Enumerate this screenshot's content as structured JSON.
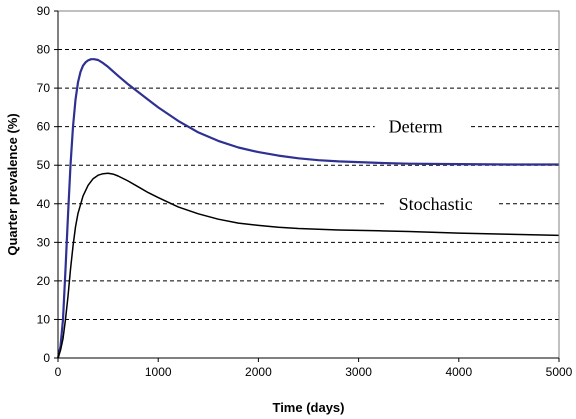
{
  "chart_data": {
    "type": "line",
    "title": "",
    "xlabel": "Time (days)",
    "ylabel": "Quarter prevalence (%)",
    "xlim": [
      0,
      5000
    ],
    "ylim": [
      0,
      90
    ],
    "xticks": [
      "0",
      "1000",
      "2000",
      "3000",
      "4000",
      "5000"
    ],
    "yticks": [
      "0",
      "10",
      "20",
      "30",
      "40",
      "50",
      "60",
      "70",
      "80",
      "90"
    ],
    "grid": "horizontal dashed",
    "series": [
      {
        "name": "Determ",
        "color": "#2e3192",
        "x": [
          0,
          25,
          50,
          75,
          100,
          125,
          150,
          175,
          200,
          225,
          250,
          275,
          300,
          330,
          360,
          400,
          450,
          500,
          600,
          700,
          800,
          900,
          1000,
          1200,
          1400,
          1600,
          1800,
          2000,
          2200,
          2400,
          2600,
          2800,
          3000,
          3200,
          3500,
          4000,
          4500,
          5000
        ],
        "y": [
          0,
          3,
          10,
          23,
          37,
          50,
          60,
          67,
          71.5,
          74.2,
          75.8,
          76.7,
          77.2,
          77.5,
          77.5,
          77.3,
          76.5,
          75.5,
          73.2,
          71,
          69,
          67,
          65,
          61.5,
          58.5,
          56.3,
          54.6,
          53.4,
          52.5,
          51.8,
          51.3,
          51,
          50.8,
          50.6,
          50.4,
          50.3,
          50.2,
          50.2
        ]
      },
      {
        "name": "Stochastic",
        "color": "#000000",
        "x": [
          0,
          25,
          50,
          75,
          100,
          125,
          150,
          175,
          200,
          250,
          300,
          350,
          400,
          450,
          500,
          550,
          600,
          700,
          800,
          900,
          1000,
          1200,
          1400,
          1600,
          1800,
          2000,
          2200,
          2400,
          2600,
          2800,
          3000,
          3200,
          3500,
          4000,
          4500,
          5000
        ],
        "y": [
          0,
          2,
          5,
          10,
          16,
          23,
          29,
          34,
          37.5,
          42,
          44.8,
          46.5,
          47.4,
          47.8,
          47.9,
          47.7,
          47.2,
          45.9,
          44.4,
          42.9,
          41.6,
          39.2,
          37.4,
          36,
          35,
          34.4,
          33.9,
          33.6,
          33.4,
          33.2,
          33.1,
          33,
          32.8,
          32.4,
          32.1,
          31.8
        ]
      }
    ],
    "annotations": [
      {
        "text": "Determ",
        "x": 3300,
        "y": 60,
        "series": "Determ"
      },
      {
        "text": "Stochastic",
        "x": 3400,
        "y": 40,
        "series": "Stochastic"
      }
    ]
  }
}
